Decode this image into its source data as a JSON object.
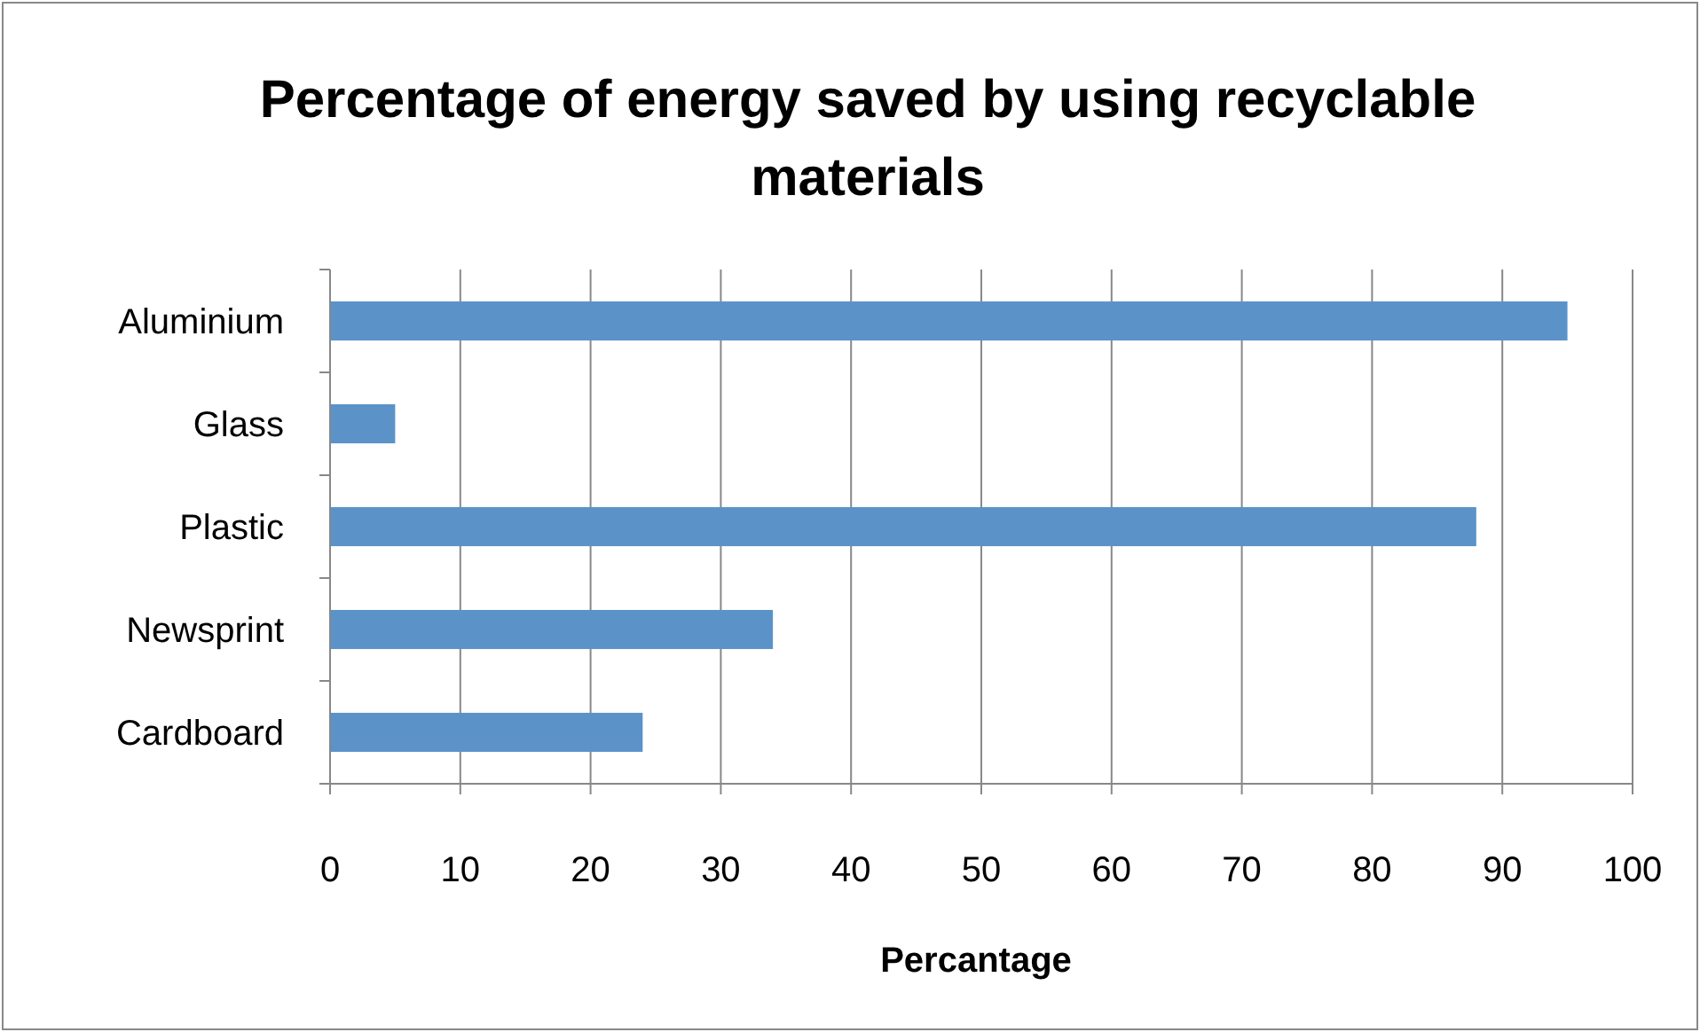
{
  "chart_data": {
    "type": "bar",
    "orientation": "horizontal",
    "title": "Percentage of energy saved by using recyclable materials",
    "xlabel": "Percantage",
    "categories": [
      "Aluminium",
      "Glass",
      "Plastic",
      "Newsprint",
      "Cardboard"
    ],
    "values": [
      95,
      5,
      88,
      34,
      24
    ],
    "color": "#5b93c8",
    "xlim": [
      0,
      100
    ],
    "xticks": [
      0,
      10,
      20,
      30,
      40,
      50,
      60,
      70,
      80,
      90,
      100
    ],
    "grid": "x"
  }
}
